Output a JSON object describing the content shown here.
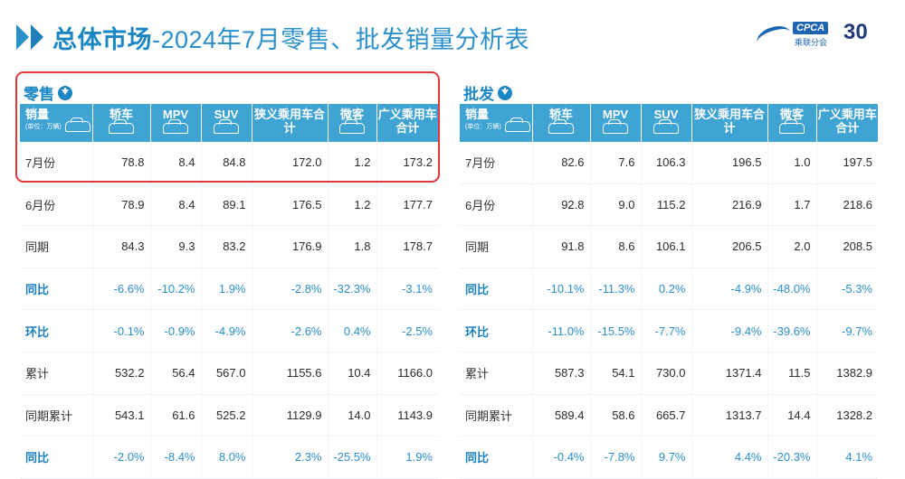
{
  "title": {
    "bold": "总体市场",
    "rest": "-2024年7月零售、批发销量分析表"
  },
  "logo": {
    "brand": "CPCA",
    "sub": "乘联分会",
    "anniv": "30"
  },
  "columns": [
    {
      "label": "轿车",
      "icon": "sedan-icon"
    },
    {
      "label": "MPV",
      "icon": "mpv-icon"
    },
    {
      "label": "SUV",
      "icon": "suv-icon"
    },
    {
      "label": "狭义乘用车合计",
      "icon": null
    },
    {
      "label": "微客",
      "icon": "minivan-icon"
    },
    {
      "label": "广义乘用车合计",
      "icon": null
    }
  ],
  "first_col": {
    "label": "销量",
    "unit": "(单位：万辆)"
  },
  "retail": {
    "label": "零售",
    "rows": [
      {
        "label": "7月份",
        "values": [
          "78.8",
          "8.4",
          "84.8",
          "172.0",
          "1.2",
          "173.2"
        ],
        "pct": false
      },
      {
        "label": "6月份",
        "values": [
          "78.9",
          "8.4",
          "89.1",
          "176.5",
          "1.2",
          "177.7"
        ],
        "pct": false
      },
      {
        "label": "同期",
        "values": [
          "84.3",
          "9.3",
          "83.2",
          "176.9",
          "1.8",
          "178.7"
        ],
        "pct": false
      },
      {
        "label": "同比",
        "values": [
          "-6.6%",
          "-10.2%",
          "1.9%",
          "-2.8%",
          "-32.3%",
          "-3.1%"
        ],
        "pct": true
      },
      {
        "label": "环比",
        "values": [
          "-0.1%",
          "-0.9%",
          "-4.9%",
          "-2.6%",
          "0.4%",
          "-2.5%"
        ],
        "pct": true
      },
      {
        "label": "累计",
        "values": [
          "532.2",
          "56.4",
          "567.0",
          "1155.6",
          "10.4",
          "1166.0"
        ],
        "pct": false
      },
      {
        "label": "同期累计",
        "values": [
          "543.1",
          "61.6",
          "525.2",
          "1129.9",
          "14.0",
          "1143.9"
        ],
        "pct": false
      },
      {
        "label": "同比",
        "values": [
          "-2.0%",
          "-8.4%",
          "8.0%",
          "2.3%",
          "-25.5%",
          "1.9%"
        ],
        "pct": true
      }
    ]
  },
  "wholesale": {
    "label": "批发",
    "rows": [
      {
        "label": "7月份",
        "values": [
          "82.6",
          "7.6",
          "106.3",
          "196.5",
          "1.0",
          "197.5"
        ],
        "pct": false
      },
      {
        "label": "6月份",
        "values": [
          "92.8",
          "9.0",
          "115.2",
          "216.9",
          "1.7",
          "218.6"
        ],
        "pct": false
      },
      {
        "label": "同期",
        "values": [
          "91.8",
          "8.6",
          "106.1",
          "206.5",
          "2.0",
          "208.5"
        ],
        "pct": false
      },
      {
        "label": "同比",
        "values": [
          "-10.1%",
          "-11.3%",
          "0.2%",
          "-4.9%",
          "-48.0%",
          "-5.3%"
        ],
        "pct": true
      },
      {
        "label": "环比",
        "values": [
          "-11.0%",
          "-15.5%",
          "-7.7%",
          "-9.4%",
          "-39.6%",
          "-9.7%"
        ],
        "pct": true
      },
      {
        "label": "累计",
        "values": [
          "587.3",
          "54.1",
          "730.0",
          "1371.4",
          "11.5",
          "1382.9"
        ],
        "pct": false
      },
      {
        "label": "同期累计",
        "values": [
          "589.4",
          "58.6",
          "665.7",
          "1313.7",
          "14.4",
          "1328.2"
        ],
        "pct": false
      },
      {
        "label": "同比",
        "values": [
          "-0.4%",
          "-7.8%",
          "9.7%",
          "4.4%",
          "-20.3%",
          "4.1%"
        ],
        "pct": true
      }
    ]
  },
  "colors": {
    "accent": "#1a86c4",
    "header": "#3fa3d3",
    "highlight": "#e0383b"
  }
}
